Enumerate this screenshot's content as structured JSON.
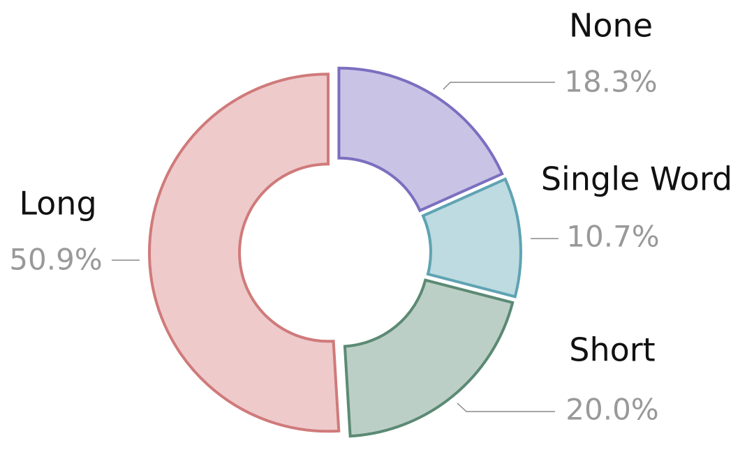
{
  "chart_data": {
    "type": "pie",
    "categories": [
      "None",
      "Single Word",
      "Short",
      "Long"
    ],
    "values": [
      18.3,
      10.7,
      20.0,
      50.9
    ],
    "value_labels": [
      "18.3%",
      "10.7%",
      "20.0%",
      "50.9%"
    ],
    "colors": [
      "#c9c3e6",
      "#bddbe0",
      "#bccfc6",
      "#eecacb"
    ],
    "edge_colors": [
      "#7b6fc0",
      "#5fa3b3",
      "#5b8a74",
      "#d07a7a"
    ]
  }
}
